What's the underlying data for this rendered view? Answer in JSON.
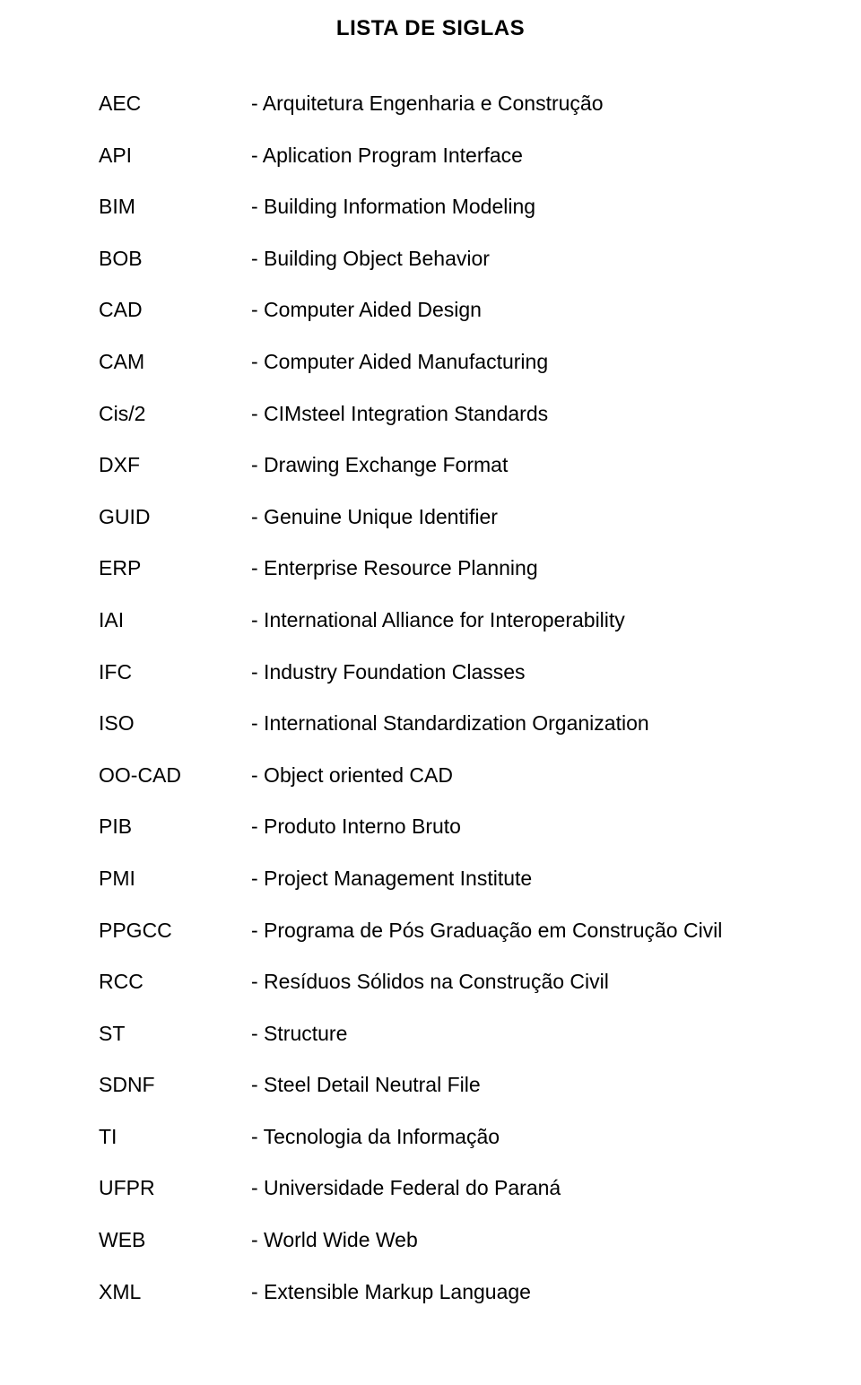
{
  "title": "LISTA DE SIGLAS",
  "rows": [
    {
      "abbr": "AEC",
      "defn": "- Arquitetura Engenharia e Construção"
    },
    {
      "abbr": "API",
      "defn": "- Aplication Program Interface"
    },
    {
      "abbr": "BIM",
      "defn": "- Building Information Modeling"
    },
    {
      "abbr": "BOB",
      "defn": "- Building Object Behavior"
    },
    {
      "abbr": "CAD",
      "defn": "- Computer Aided Design"
    },
    {
      "abbr": "CAM",
      "defn": "- Computer Aided Manufacturing"
    },
    {
      "abbr": "Cis/2",
      "defn": "- CIMsteel Integration Standards"
    },
    {
      "abbr": "DXF",
      "defn": "- Drawing Exchange Format"
    },
    {
      "abbr": "GUID",
      "defn": "- Genuine Unique Identifier"
    },
    {
      "abbr": "ERP",
      "defn": "- Enterprise Resource Planning"
    },
    {
      "abbr": "IAI",
      "defn": "- International Alliance for Interoperability"
    },
    {
      "abbr": "IFC",
      "defn": "- Industry Foundation Classes"
    },
    {
      "abbr": "ISO",
      "defn": "- International Standardization Organization"
    },
    {
      "abbr": "OO-CAD",
      "defn": "- Object oriented CAD"
    },
    {
      "abbr": "PIB",
      "defn": "- Produto Interno Bruto"
    },
    {
      "abbr": "PMI",
      "defn": "- Project Management Institute"
    },
    {
      "abbr": "PPGCC",
      "defn": "- Programa de Pós Graduação em Construção Civil"
    },
    {
      "abbr": "RCC",
      "defn": "- Resíduos Sólidos na Construção Civil"
    },
    {
      "abbr": "ST",
      "defn": "- Structure"
    },
    {
      "abbr": "SDNF",
      "defn": "- Steel Detail Neutral File"
    },
    {
      "abbr": "TI",
      "defn": "- Tecnologia da Informação"
    },
    {
      "abbr": "UFPR",
      "defn": "- Universidade Federal do Paraná"
    },
    {
      "abbr": "WEB",
      "defn": "- World Wide Web"
    },
    {
      "abbr": "XML",
      "defn": "- Extensible Markup Language"
    }
  ]
}
